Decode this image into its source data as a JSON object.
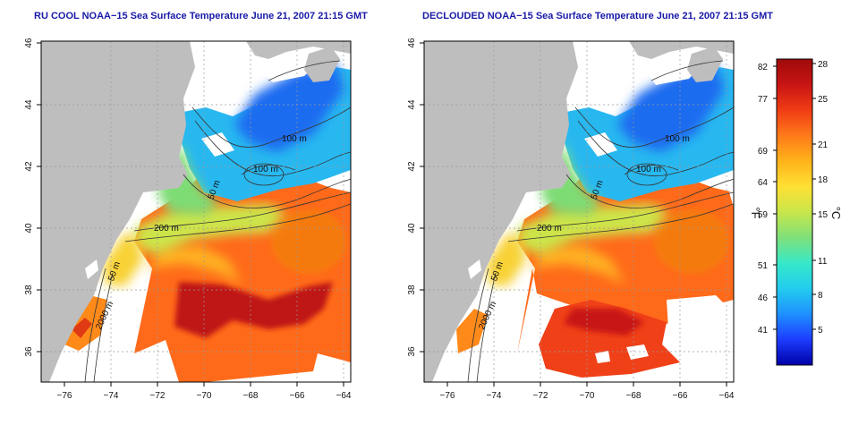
{
  "maps": [
    {
      "title": "RU COOL NOAA−15 Sea Surface Temperature June 21, 2007 21:15 GMT",
      "variant": "full",
      "isobaths": [
        "100 m",
        "100 m",
        "50 m",
        "200 m",
        "50 m",
        "2000 m"
      ]
    },
    {
      "title": "DECLOUDED NOAA−15 Sea Surface Temperature June 21, 2007 21:15 GMT",
      "variant": "declouded",
      "isobaths": [
        "100 m",
        "100 m",
        "50 m",
        "200 m",
        "50 m",
        "2000 m"
      ]
    }
  ],
  "axes": {
    "x_ticks": [
      "−76",
      "−74",
      "−72",
      "−70",
      "−68",
      "−66",
      "−64"
    ],
    "y_ticks": [
      "46",
      "44",
      "42",
      "40",
      "38",
      "36"
    ]
  },
  "colorbar": {
    "f_label": "°F",
    "c_label": "°C",
    "f_ticks": [
      "82",
      "77",
      "69",
      "64",
      "59",
      "51",
      "46",
      "41"
    ],
    "c_ticks": [
      "28",
      "25",
      "21",
      "18",
      "15",
      "11",
      "8",
      "5"
    ],
    "colors": [
      "#0000a8",
      "#1e3cff",
      "#1e90ff",
      "#22ccee",
      "#37e8c8",
      "#7fe07a",
      "#c8e64a",
      "#ffe033",
      "#ffb31a",
      "#ff7a1a",
      "#f03c14",
      "#c81414",
      "#a00a0a"
    ]
  },
  "colors": {
    "land": "#bebebe",
    "ocean_nodata": "#ffffff",
    "title": "#1a1aa8"
  }
}
